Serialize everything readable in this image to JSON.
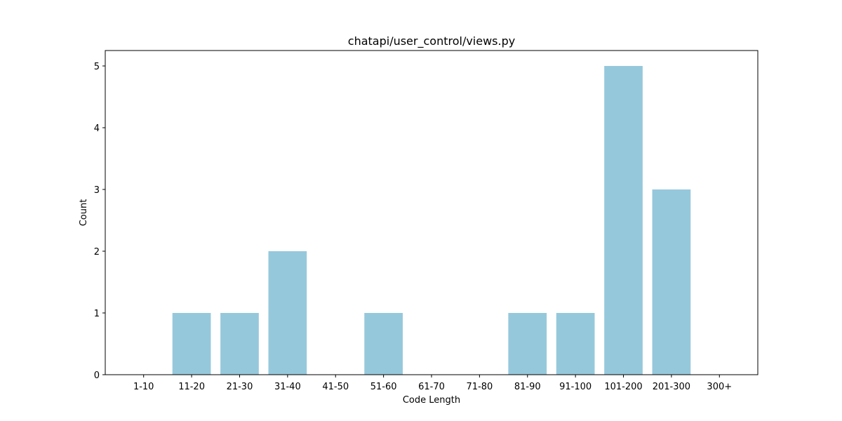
{
  "chart_data": {
    "type": "bar",
    "title": "chatapi/user_control/views.py",
    "xlabel": "Code Length",
    "ylabel": "Count",
    "categories": [
      "1-10",
      "11-20",
      "21-30",
      "31-40",
      "41-50",
      "51-60",
      "61-70",
      "71-80",
      "81-90",
      "91-100",
      "101-200",
      "201-300",
      "300+"
    ],
    "values": [
      0,
      1,
      1,
      2,
      0,
      1,
      0,
      0,
      1,
      1,
      5,
      3,
      0
    ],
    "ylim": [
      0,
      5.25
    ],
    "yticks": [
      0,
      1,
      2,
      3,
      4,
      5
    ],
    "grid": false,
    "bar_color": "#96c8dc"
  }
}
